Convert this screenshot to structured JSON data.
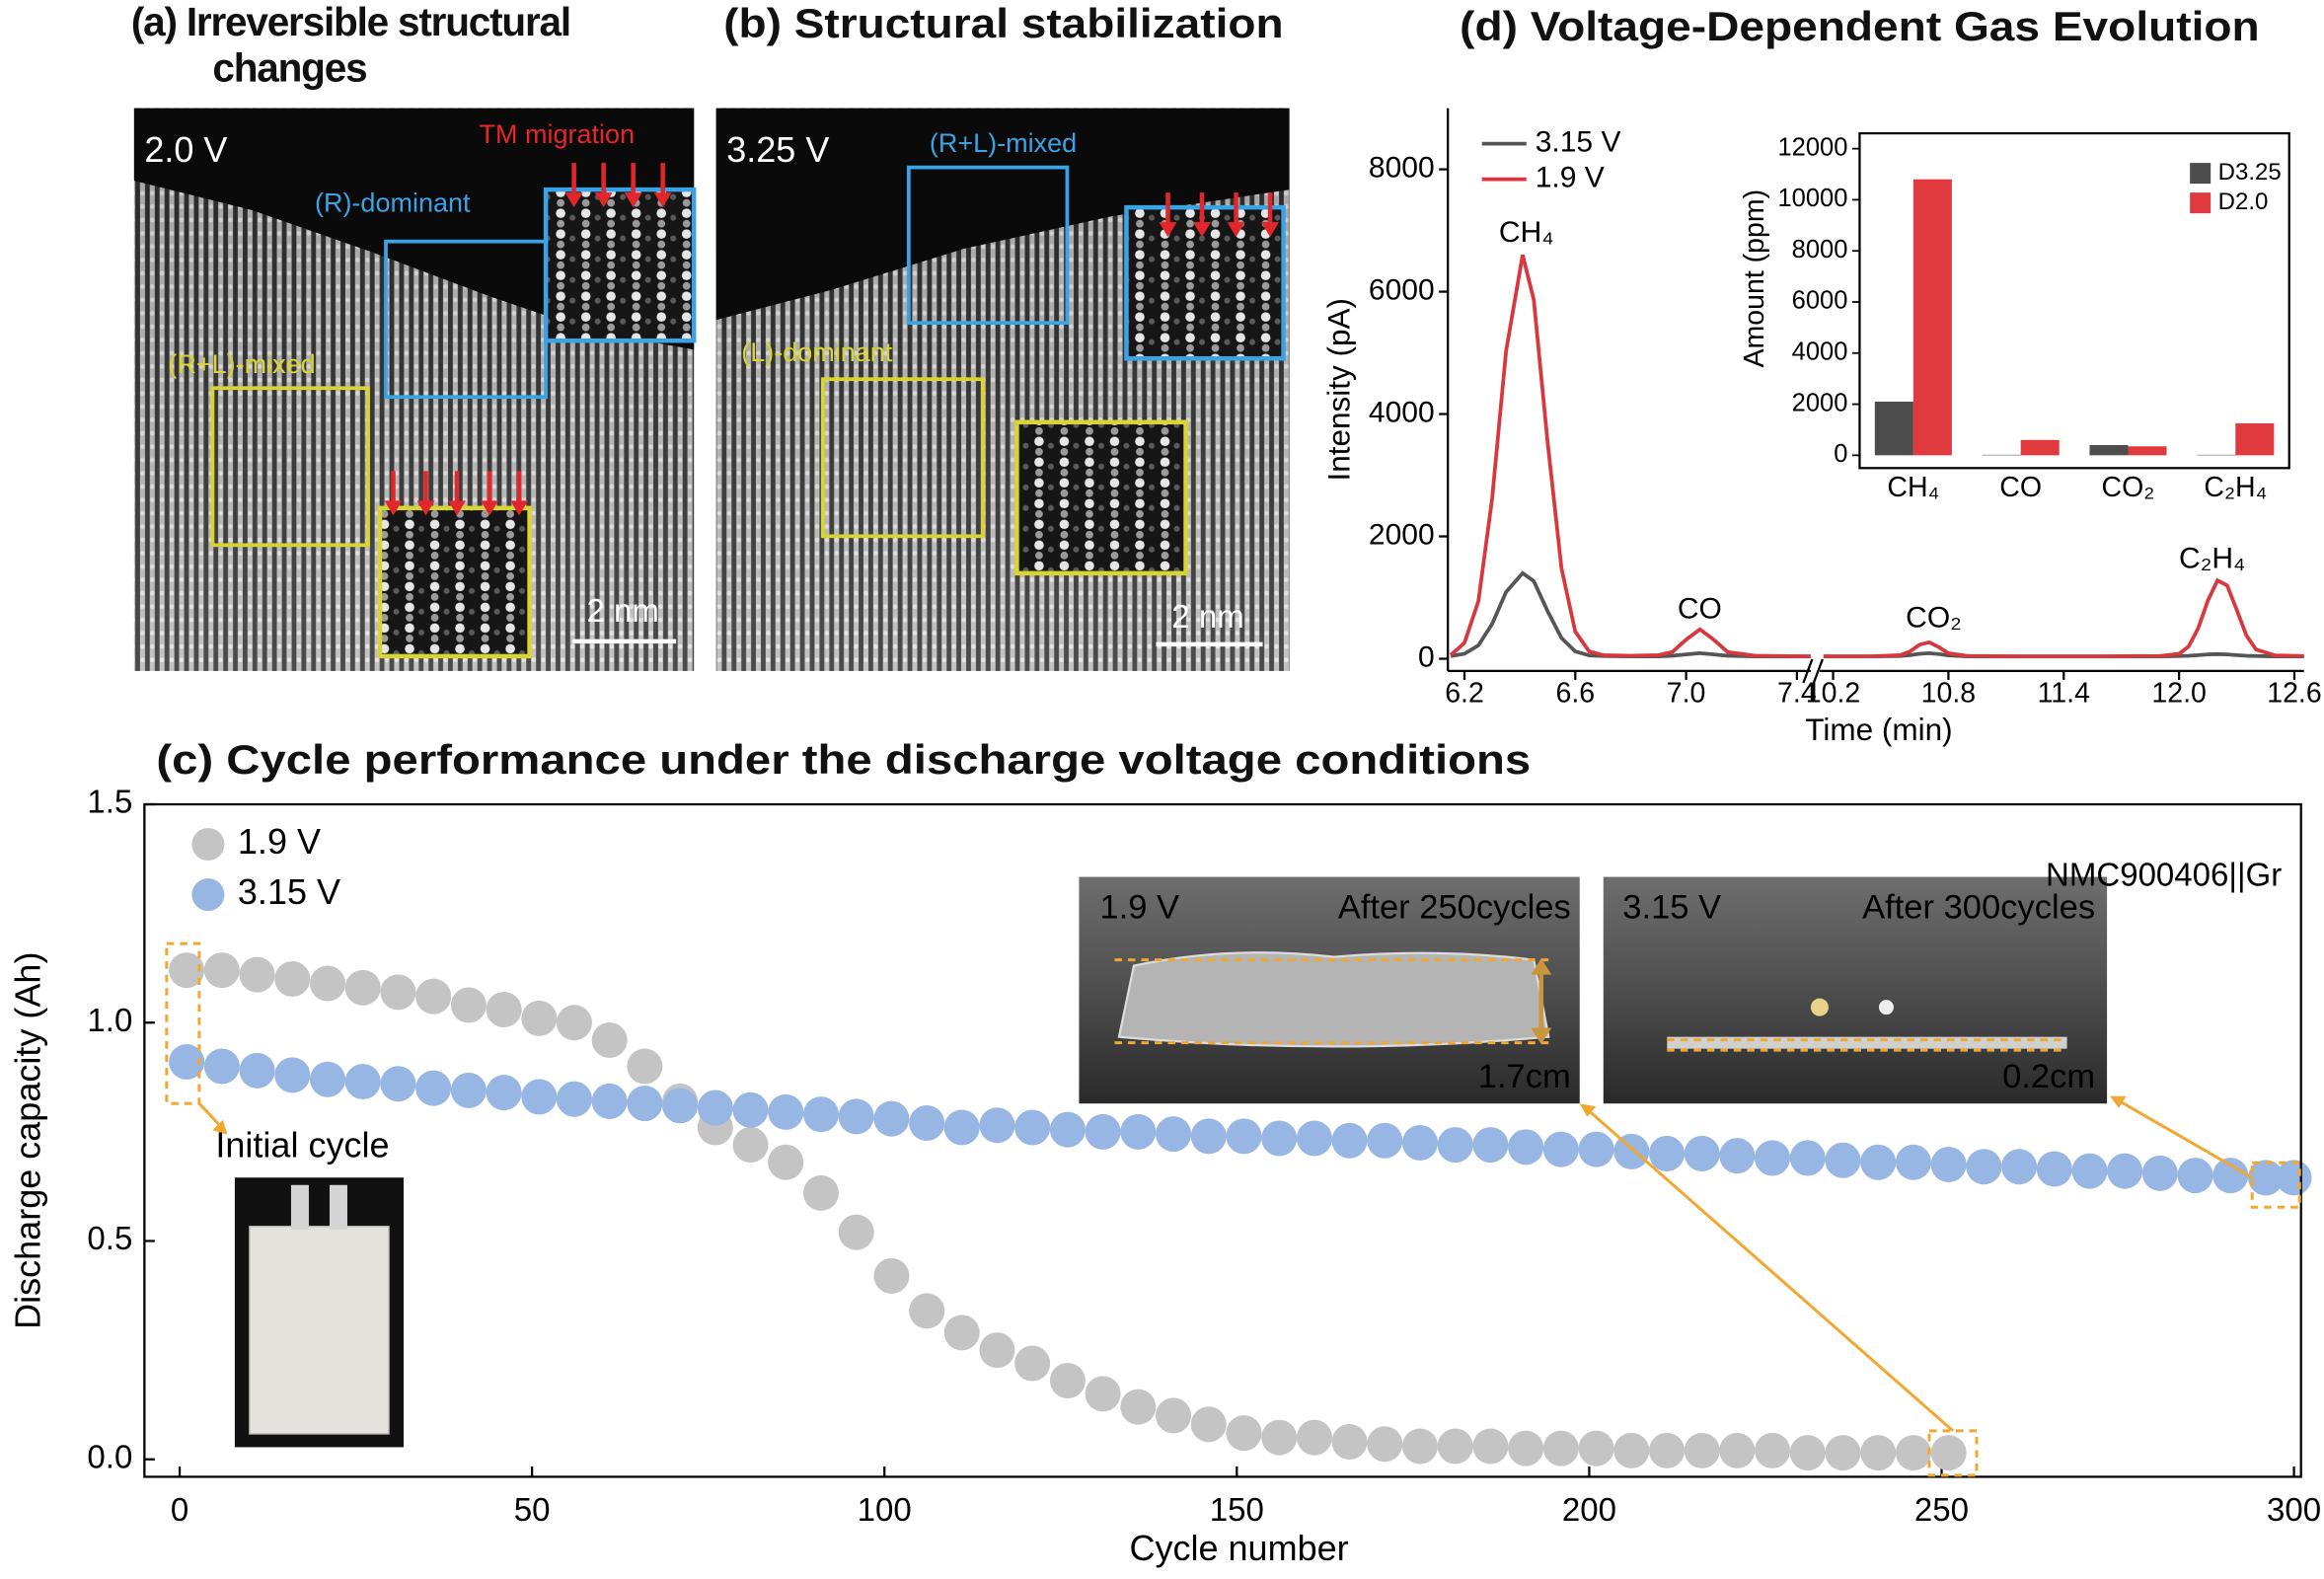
{
  "micrographs": [
    {
      "title": "(a) Irreversible structural changes",
      "voltage": "2.0 V",
      "labels": [
        "TM migration",
        "(R)-dominant",
        "(R+L)-mixed"
      ],
      "scale_bar": "2 nm"
    },
    {
      "title": "(b) Structural stabilization",
      "voltage": "3.25 V",
      "labels": [
        "(R+L)-mixed",
        "(L)-dominant"
      ],
      "scale_bar": "2 nm"
    }
  ],
  "chart_data": [
    {
      "type": "line",
      "title": "(d) Voltage-Dependent Gas Evolution",
      "x_label": "Time (min)",
      "y_label": "Intensity (pA)",
      "x_segments": [
        {
          "xlim": [
            6.14,
            7.45
          ],
          "xticks": [
            6.2,
            6.6,
            {
              "value": 7,
              "label": "7.0"
            },
            7.4
          ]
        },
        {
          "xlim": [
            10.13,
            12.65
          ],
          "xticks": [
            10.2,
            10.8,
            11.4,
            {
              "value": 12,
              "label": "12.0"
            },
            12.6
          ]
        }
      ],
      "ylim": [
        -200,
        9000
      ],
      "yticks": [
        0,
        2000,
        4000,
        6000,
        8000
      ],
      "x": [
        6.15,
        6.2,
        6.25,
        6.3,
        6.35,
        6.41,
        6.45,
        6.5,
        6.55,
        6.6,
        6.65,
        6.7,
        6.8,
        6.9,
        6.95,
        7.0,
        7.05,
        7.1,
        7.15,
        7.25,
        7.45,
        10.15,
        10.4,
        10.55,
        10.6,
        10.65,
        10.7,
        10.75,
        10.8,
        10.9,
        11.2,
        11.6,
        11.9,
        12.0,
        12.05,
        12.1,
        12.15,
        12.2,
        12.25,
        12.3,
        12.35,
        12.4,
        12.5,
        12.65
      ],
      "series": [
        {
          "name": "3.15 V",
          "color": "#555555",
          "values": [
            45,
            80,
            220,
            570,
            1090,
            1400,
            1270,
            780,
            340,
            120,
            55,
            45,
            40,
            40,
            50,
            70,
            90,
            70,
            50,
            40,
            40,
            40,
            40,
            45,
            60,
            80,
            90,
            75,
            55,
            40,
            40,
            40,
            40,
            45,
            50,
            60,
            70,
            75,
            70,
            60,
            50,
            45,
            40,
            40
          ]
        },
        {
          "name": "1.9 V",
          "color": "#d9363e",
          "values": [
            60,
            260,
            940,
            2620,
            5030,
            6600,
            5870,
            3550,
            1480,
            445,
            120,
            60,
            50,
            60,
            110,
            310,
            480,
            310,
            110,
            50,
            40,
            40,
            40,
            60,
            120,
            230,
            270,
            190,
            90,
            45,
            40,
            40,
            45,
            80,
            200,
            500,
            950,
            1280,
            1200,
            800,
            380,
            150,
            55,
            45
          ]
        }
      ],
      "annotations": [
        "CH₄",
        "CO",
        "CO₂",
        "C₂H₄"
      ],
      "legend": "upper left"
    },
    {
      "type": "bar",
      "y_label": "Amount (ppm)",
      "categories": [
        "CH₄",
        "CO",
        "CO₂",
        "C₂H₄"
      ],
      "ylim": [
        -500,
        12600
      ],
      "yticks": [
        0,
        2000,
        4000,
        6000,
        8000,
        10000,
        12000
      ],
      "series": [
        {
          "name": "D3.25",
          "color": "#4d4d4d",
          "values": [
            2100,
            20,
            400,
            20
          ]
        },
        {
          "name": "D2.0",
          "color": "#e0393e",
          "values": [
            10800,
            600,
            350,
            1250
          ]
        }
      ],
      "legend": "upper right"
    },
    {
      "type": "scatter",
      "title": "(c) Cycle performance under the discharge voltage conditions",
      "x_label": "Cycle number",
      "y_label": "Discharge capacity (Ah)",
      "xlim": [
        -5,
        301
      ],
      "xticks": [
        0,
        50,
        100,
        150,
        200,
        250,
        300
      ],
      "ylim": [
        -0.04,
        1.5
      ],
      "yticks": [
        {
          "value": 0,
          "label": "0.0"
        },
        0.5,
        {
          "value": 1,
          "label": "1.0"
        },
        1.5
      ],
      "series": [
        {
          "name": "1.9 V",
          "color": "#c4c4c4",
          "x": [
            1,
            6,
            11,
            16,
            21,
            26,
            31,
            36,
            41,
            46,
            51,
            56,
            61,
            66,
            71,
            76,
            81,
            86,
            91,
            96,
            101,
            106,
            111,
            116,
            121,
            126,
            131,
            136,
            141,
            146,
            151,
            156,
            161,
            166,
            171,
            176,
            181,
            186,
            191,
            196,
            201,
            206,
            211,
            216,
            221,
            226,
            231,
            236,
            241,
            246,
            251
          ],
          "values": [
            1.12,
            1.12,
            1.11,
            1.1,
            1.09,
            1.08,
            1.07,
            1.06,
            1.04,
            1.03,
            1.01,
            1.0,
            0.96,
            0.9,
            0.82,
            0.76,
            0.72,
            0.68,
            0.61,
            0.52,
            0.42,
            0.34,
            0.29,
            0.25,
            0.22,
            0.18,
            0.15,
            0.12,
            0.1,
            0.08,
            0.06,
            0.05,
            0.05,
            0.04,
            0.035,
            0.03,
            0.03,
            0.03,
            0.025,
            0.025,
            0.025,
            0.02,
            0.02,
            0.02,
            0.02,
            0.02,
            0.015,
            0.015,
            0.015,
            0.015,
            0.015
          ]
        },
        {
          "name": "3.15 V",
          "color": "#97b6e3",
          "x": [
            1,
            6,
            11,
            16,
            21,
            26,
            31,
            36,
            41,
            46,
            51,
            56,
            61,
            66,
            71,
            76,
            81,
            86,
            91,
            96,
            101,
            106,
            111,
            116,
            121,
            126,
            131,
            136,
            141,
            146,
            151,
            156,
            161,
            166,
            171,
            176,
            181,
            186,
            191,
            196,
            201,
            206,
            211,
            216,
            221,
            226,
            231,
            236,
            241,
            246,
            251,
            256,
            261,
            266,
            271,
            276,
            281,
            286,
            291,
            296,
            300
          ],
          "values": [
            0.91,
            0.9,
            0.89,
            0.88,
            0.87,
            0.865,
            0.86,
            0.85,
            0.845,
            0.84,
            0.83,
            0.825,
            0.82,
            0.815,
            0.81,
            0.805,
            0.8,
            0.795,
            0.79,
            0.785,
            0.78,
            0.77,
            0.76,
            0.765,
            0.76,
            0.755,
            0.75,
            0.75,
            0.745,
            0.74,
            0.74,
            0.735,
            0.735,
            0.73,
            0.73,
            0.725,
            0.72,
            0.72,
            0.715,
            0.71,
            0.71,
            0.705,
            0.7,
            0.7,
            0.695,
            0.69,
            0.69,
            0.685,
            0.68,
            0.68,
            0.675,
            0.67,
            0.67,
            0.665,
            0.66,
            0.66,
            0.655,
            0.65,
            0.65,
            0.645,
            0.645
          ]
        }
      ],
      "annotations": [
        "NMC900406||Gr",
        "Initial cycle"
      ],
      "photos": [
        {
          "voltage": "1.9 V",
          "caption": "After 250cycles",
          "height": "1.7cm"
        },
        {
          "voltage": "3.15 V",
          "caption": "After 300cycles",
          "height": "0.2cm"
        }
      ],
      "legend": "upper left"
    }
  ]
}
